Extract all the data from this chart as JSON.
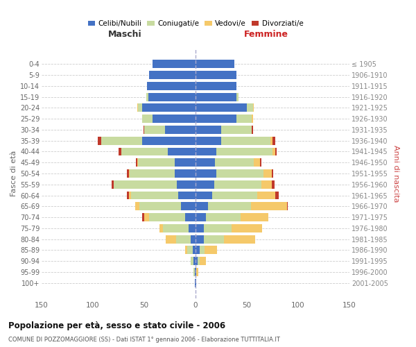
{
  "age_groups": [
    "0-4",
    "5-9",
    "10-14",
    "15-19",
    "20-24",
    "25-29",
    "30-34",
    "35-39",
    "40-44",
    "45-49",
    "50-54",
    "55-59",
    "60-64",
    "65-69",
    "70-74",
    "75-79",
    "80-84",
    "85-89",
    "90-94",
    "95-99",
    "100+"
  ],
  "birth_years": [
    "2001-2005",
    "1996-2000",
    "1991-1995",
    "1986-1990",
    "1981-1985",
    "1976-1980",
    "1971-1975",
    "1966-1970",
    "1961-1965",
    "1956-1960",
    "1951-1955",
    "1946-1950",
    "1941-1945",
    "1936-1940",
    "1931-1935",
    "1926-1930",
    "1921-1925",
    "1916-1920",
    "1911-1915",
    "1906-1910",
    "≤ 1905"
  ],
  "male_celibi": [
    42,
    45,
    47,
    46,
    52,
    42,
    30,
    52,
    27,
    20,
    20,
    18,
    17,
    14,
    10,
    7,
    5,
    3,
    2,
    1,
    1
  ],
  "male_coniugati": [
    0,
    0,
    0,
    2,
    4,
    10,
    20,
    40,
    45,
    36,
    44,
    62,
    46,
    41,
    35,
    25,
    14,
    5,
    3,
    1,
    0
  ],
  "male_vedovi": [
    0,
    0,
    0,
    0,
    1,
    0,
    0,
    0,
    0,
    1,
    1,
    0,
    2,
    4,
    5,
    3,
    10,
    2,
    0,
    0,
    0
  ],
  "male_divorziati": [
    0,
    0,
    0,
    0,
    0,
    0,
    1,
    3,
    3,
    1,
    2,
    2,
    2,
    0,
    2,
    0,
    0,
    0,
    0,
    0,
    0
  ],
  "female_celibi": [
    38,
    40,
    40,
    40,
    50,
    40,
    25,
    25,
    20,
    19,
    20,
    18,
    16,
    12,
    10,
    8,
    8,
    4,
    2,
    1,
    1
  ],
  "female_coniugati": [
    0,
    0,
    0,
    2,
    6,
    15,
    30,
    48,
    55,
    38,
    46,
    46,
    44,
    42,
    34,
    27,
    20,
    5,
    2,
    0,
    0
  ],
  "female_vedovi": [
    0,
    0,
    0,
    0,
    1,
    1,
    0,
    2,
    3,
    6,
    8,
    10,
    18,
    35,
    27,
    30,
    30,
    12,
    6,
    2,
    0
  ],
  "female_divorziati": [
    0,
    0,
    0,
    0,
    0,
    0,
    1,
    3,
    1,
    1,
    2,
    3,
    3,
    1,
    0,
    0,
    0,
    0,
    0,
    0,
    0
  ],
  "color_celibi": "#4472c4",
  "color_coniugati": "#c8dba0",
  "color_vedovi": "#f5c96a",
  "color_divorziati": "#c0392b",
  "title": "Popolazione per età, sesso e stato civile - 2006",
  "subtitle": "COMUNE DI POZZOMAGGIORE (SS) - Dati ISTAT 1° gennaio 2006 - Elaborazione TUTTITALIA.IT",
  "xlabel_left": "Maschi",
  "xlabel_right": "Femmine",
  "ylabel_left": "Fasce di età",
  "ylabel_right": "Anni di nascita",
  "xlim": 150,
  "bg_color": "#ffffff",
  "grid_color": "#cccccc",
  "legend_labels": [
    "Celibi/Nubili",
    "Coniugati/e",
    "Vedovi/e",
    "Divorziati/e"
  ]
}
